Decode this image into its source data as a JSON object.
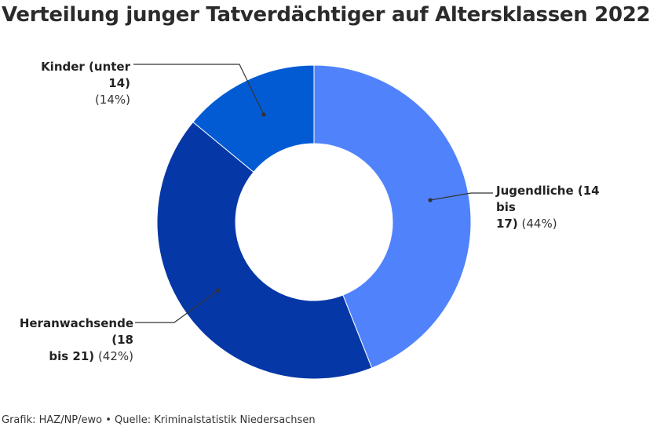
{
  "title": "Verteilung junger Tatverdächtiger auf Altersklassen 2022",
  "source": "Grafik: HAZ/NP/ewo • Quelle: Kriminalstatistik Niedersachsen",
  "colors": {
    "jugendliche": "#5083fb",
    "heranwachsende": "#0637a6",
    "kinder": "#035bd4",
    "leader": "#333333"
  },
  "chart_data": {
    "type": "pie",
    "donut": true,
    "title": "Verteilung junger Tatverdächtiger auf Altersklassen 2022",
    "start": "12 o'clock",
    "direction": "clockwise",
    "slices": [
      {
        "name_line1": "Jugendliche (14 bis",
        "name_line2": "17)",
        "pct_label": "(44%)",
        "value": 44,
        "color": "#5083fb"
      },
      {
        "name_line1": "Heranwachsende (18",
        "name_line2": "bis 21)",
        "pct_label": "(42%)",
        "value": 42,
        "color": "#0637a6"
      },
      {
        "name_line1": "Kinder (unter 14)",
        "name_line2": "",
        "pct_label": "(14%)",
        "value": 14,
        "color": "#035bd4"
      }
    ]
  }
}
